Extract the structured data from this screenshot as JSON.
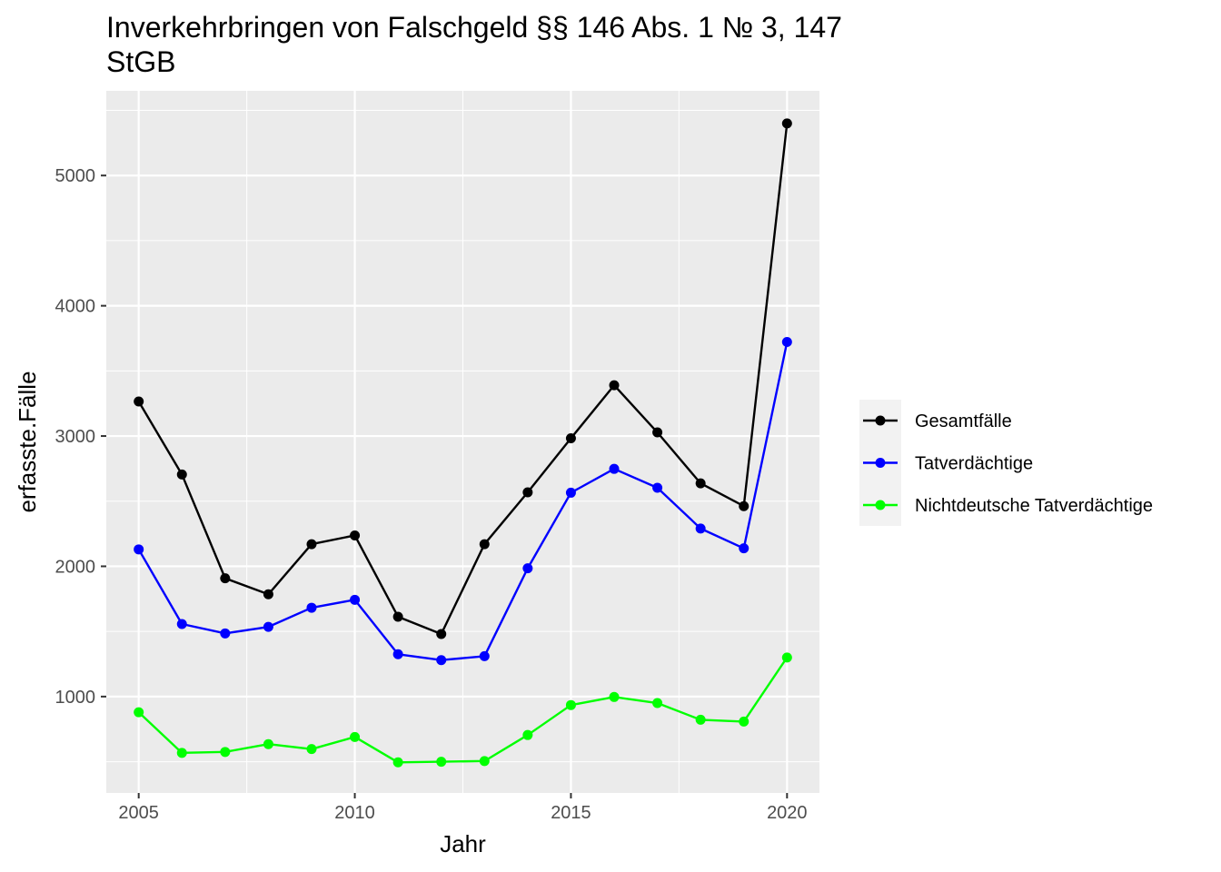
{
  "chart_data": {
    "type": "line",
    "title": "Inverkehrbringen von Falschgeld §§ 146 Abs. 1 № 3, 147 StGB",
    "title_lines": [
      "Inverkehrbringen von Falschgeld §§ 146 Abs. 1 № 3, 147",
      "StGB"
    ],
    "xlabel": "Jahr",
    "ylabel": "erfasste.Fälle",
    "x": [
      2005,
      2006,
      2007,
      2008,
      2009,
      2010,
      2011,
      2012,
      2013,
      2014,
      2015,
      2016,
      2017,
      2018,
      2019,
      2020
    ],
    "xlim": [
      2004.25,
      2020.75
    ],
    "ylim": [
      260,
      5650
    ],
    "x_ticks": [
      "2005",
      "2010",
      "2015",
      "2020"
    ],
    "y_ticks": [
      "1000",
      "2000",
      "3000",
      "4000",
      "5000"
    ],
    "grid": true,
    "legend_position": "right",
    "series": [
      {
        "name": "Gesamtfälle",
        "color": "#000000",
        "values": [
          3265,
          2705,
          1908,
          1785,
          2170,
          2237,
          1613,
          1480,
          2170,
          2568,
          2983,
          3390,
          3028,
          2637,
          2462,
          5400
        ]
      },
      {
        "name": "Tatverdächtige",
        "color": "#0000ff",
        "values": [
          2130,
          1557,
          1485,
          1535,
          1682,
          1743,
          1325,
          1280,
          1310,
          1985,
          2565,
          2748,
          2603,
          2290,
          2138,
          3722
        ]
      },
      {
        "name": "Nichtdeutsche Tatverdächtige",
        "color": "#00ff00",
        "values": [
          880,
          568,
          575,
          635,
          597,
          690,
          495,
          500,
          505,
          705,
          935,
          997,
          950,
          822,
          808,
          1300
        ]
      }
    ]
  }
}
